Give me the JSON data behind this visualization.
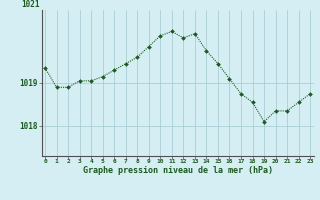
{
  "hours": [
    0,
    1,
    2,
    3,
    4,
    5,
    6,
    7,
    8,
    9,
    10,
    11,
    12,
    13,
    14,
    15,
    16,
    17,
    18,
    19,
    20,
    21,
    22,
    23
  ],
  "pressure": [
    1019.35,
    1018.9,
    1018.9,
    1019.05,
    1019.05,
    1019.15,
    1019.3,
    1019.45,
    1019.6,
    1019.85,
    1020.1,
    1020.2,
    1020.05,
    1020.15,
    1019.75,
    1019.45,
    1019.1,
    1018.75,
    1018.55,
    1018.1,
    1018.35,
    1018.35,
    1018.55,
    1018.75
  ],
  "line_color": "#1a5c1a",
  "marker_color": "#1a5c1a",
  "bg_color": "#d4eef4",
  "grid_color": "#a0c8d0",
  "xlabel": "Graphe pression niveau de la mer (hPa)",
  "xlabel_color": "#1a5c1a",
  "tick_color": "#1a5c1a",
  "yticks": [
    1018,
    1019
  ],
  "ylim": [
    1017.3,
    1020.7
  ],
  "xlim": [
    -0.3,
    23.3
  ],
  "figsize": [
    3.2,
    2.0
  ],
  "dpi": 100
}
